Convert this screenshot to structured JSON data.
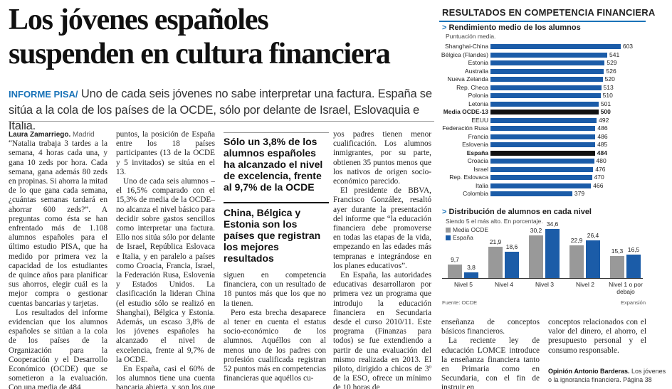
{
  "headline": {
    "line1": "Los jóvenes españoles",
    "line2": "suspenden en cultura financiera"
  },
  "lead": {
    "kicker": "INFORME PISA/",
    "text": "Uno de cada seis jóvenes no sabe interpretar una factura. España se sitúa a la cola de los países de la OCDE, sólo por delante de Israel, Eslovaquia e Italia."
  },
  "byline": {
    "author": "Laura Zamarriego.",
    "place": "Madrid"
  },
  "columns": {
    "c1": [
      "“Natalia trabaja 3 tardes a la semana, 4 horas cada una, y gana 10 zeds por hora. Cada semana, gana además 80 zeds en propinas. Si ahorra la mitad de lo que gana cada semana, ¿cuántas semanas tardará en ahorrar 600 zeds?”. A preguntas como ésta se han enfrentado más de 1.108 alumnos españoles para el último estudio PISA, que ha medido por primera vez la capacidad de los estudiantes de quince años para planificar sus ahorros, elegir cuál es la mejor compra o gestionar cuentas bancarias y tarjetas.",
      "Los resultados del informe evidencian que los alumnos españoles se sitúan a la cola de los países de la Organización para la Cooperación y el Desarrollo Económico (OCDE) que se sometieron a la evaluación. Con una media de 484"
    ],
    "c2": [
      "puntos, la posición de España entre los 18 países participantes (13 de la OCDE y 5 invitados) se sitúa en el 13.",
      "Uno de cada seis alumnos –el 16,5% comparado con el 15,3% de media de la OCDE– no alcanza el nivel básico para decidir sobre gastos sencillos como interpretar una factura. Ello nos sitúa sólo por delante de Israel, República Eslovaca e Italia, y en paralelo a países como Croacia, Francia, Israel, la Federación Rusa, Eslovenia y Estados Unidos. La clasificación la lideran China (el estudio sólo se realizó en Shanghai), Bélgica y Estonia. Además, un escaso 3,8% de los jóvenes españoles ha alcanzado el nivel de excelencia, frente al 9,7% de la OCDE.",
      "En España, casi el 60% de los alumnos tiene una cuenta bancaria abierta, y son los que mejores resultados con-"
    ],
    "c3": [
      "siguen en competencia financiera, con un resultado de 18 puntos más que los que no la tienen.",
      "Pero esta brecha desaparece al tener en cuenta el estatus socio-económico de los alumnos. Aquéllos con al menos uno de los padres con profesión cualificada registran 52 puntos más en competencias financieras que aquéllos cu-"
    ],
    "c4": [
      "yos padres tienen menor cualificación. Los alumnos inmigrantes, por su parte, obtienen 35 puntos menos que los nativos de origen socio-económico parecido.",
      "El presidente de BBVA, Francisco González, resaltó ayer durante la presentación del informe que “la educación financiera debe promoverse en todas las etapas de la vida, empezando en las edades más tempranas e integrándose en los planes educativos”.",
      "En España, las autoridades educativas desarrollaron por primera vez un programa que introdujo la educación financiera en Secundaria desde el curso 2010/11. Este programa (Finanzas para todos) se fue extendiendo a partir de una evaluación del mismo realizada en 2013. El piloto, dirigido a chicos de 3º de la ESO, ofrece un mínimo de 10 horas de"
    ],
    "c5": [
      "enseñanza de conceptos básicos financieros.",
      "La reciente ley de educación LOMCE introduce la enseñanza financiera tanto en Primaria como en Secundaria, con el fin de instruir en"
    ],
    "c6": [
      "conceptos relacionados con el valor del dinero, el ahorro, el presupuesto personal y el consumo responsable."
    ]
  },
  "pullquotes": {
    "q1": "Sólo un 3,8% de los alumnos españoles ha alcanzado el nivel de excelencia, frente al 9,7% de la OCDE",
    "q2": "China, Bélgica y Estonia son los países que registran los mejores resultados"
  },
  "opinion": {
    "label": "Opinión",
    "author": "Antonio Barderas.",
    "text": "Los jóvenes o la ignorancia financiera. Página 38"
  },
  "panel": {
    "title": "RESULTADOS EN COMPETENCIA FINANCIERA",
    "source": "Fuente: OCDE",
    "credit": "Expansión",
    "colors": {
      "bar": "#1b5ca8",
      "highlight": "#111111",
      "oecd": "#999999",
      "spain": "#1b5ca8"
    }
  },
  "chart_data": [
    {
      "type": "bar",
      "orientation": "horizontal",
      "title": "Rendimiento medio de los alumnos",
      "subtitle": "Puntuación media.",
      "categories": [
        "Shanghai-China",
        "Bélgica (Flandes)",
        "Estonia",
        "Australia",
        "Nueva Zelanda",
        "Rep. Checa",
        "Polonia",
        "Letonia",
        "Media OCDE-13",
        "EEUU",
        "Federación Rusa",
        "Francia",
        "Eslovenia",
        "España",
        "Croacia",
        "Israel",
        "Rep. Eslovaca",
        "Italia",
        "Colombia"
      ],
      "values": [
        603,
        541,
        529,
        526,
        520,
        513,
        510,
        501,
        500,
        492,
        486,
        486,
        485,
        484,
        480,
        476,
        470,
        466,
        379
      ],
      "highlight": [
        "Media OCDE-13",
        "España"
      ],
      "xlim": [
        0,
        620
      ]
    },
    {
      "type": "bar",
      "title": "Distribución de alumnos en cada nivel",
      "subtitle": "Siendo 5 el más alto. En porcentaje.",
      "categories": [
        "Nivel 5",
        "Nivel 4",
        "Nivel 3",
        "Nivel 2",
        "Nivel 1 o por debajo"
      ],
      "series": [
        {
          "name": "Media OCDE",
          "values": [
            9.7,
            21.9,
            30.2,
            22.9,
            15.3
          ]
        },
        {
          "name": "España",
          "values": [
            3.8,
            18.6,
            34.6,
            26.4,
            16.5
          ]
        }
      ],
      "ylim": [
        0,
        40
      ]
    }
  ]
}
